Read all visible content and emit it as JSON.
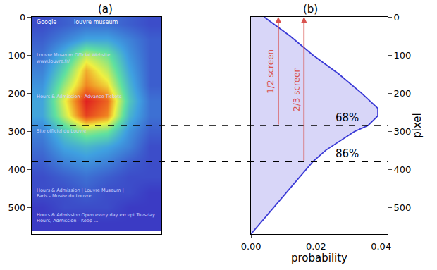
{
  "chart_data": [
    {
      "type": "heatmap",
      "title": "(a)",
      "x": [
        25,
        75,
        125,
        175,
        225,
        275
      ],
      "y": [
        20,
        60,
        100,
        140,
        180,
        220,
        260,
        300,
        340,
        380,
        420,
        460,
        500,
        540
      ],
      "z": [
        [
          0.05,
          0.1,
          0.15,
          0.15,
          0.1,
          0.05
        ],
        [
          0.1,
          0.2,
          0.3,
          0.3,
          0.2,
          0.1
        ],
        [
          0.15,
          0.35,
          0.6,
          0.5,
          0.25,
          0.1
        ],
        [
          0.2,
          0.45,
          0.75,
          0.6,
          0.3,
          0.1
        ],
        [
          0.25,
          0.55,
          0.8,
          0.7,
          0.35,
          0.1
        ],
        [
          0.3,
          0.65,
          0.95,
          0.85,
          0.4,
          0.15
        ],
        [
          0.3,
          0.6,
          0.9,
          0.8,
          0.35,
          0.15
        ],
        [
          0.2,
          0.4,
          0.55,
          0.5,
          0.25,
          0.1
        ],
        [
          0.15,
          0.3,
          0.35,
          0.3,
          0.2,
          0.05
        ],
        [
          0.1,
          0.2,
          0.25,
          0.2,
          0.1,
          0.05
        ],
        [
          0.05,
          0.1,
          0.15,
          0.1,
          0.05,
          0.05
        ],
        [
          0.05,
          0.05,
          0.1,
          0.05,
          0.05,
          0
        ],
        [
          0,
          0.05,
          0.05,
          0.05,
          0,
          0
        ],
        [
          0,
          0,
          0,
          0,
          0,
          0
        ]
      ],
      "xlim": [
        0,
        300
      ],
      "ylim": [
        0,
        570
      ],
      "yticks": [
        0,
        100,
        200,
        300,
        400,
        500
      ],
      "tick_labels": "y",
      "screen_texts": [
        "Google",
        "louvre museum",
        "Louvre Museum Official Website",
        "www.louvre.fr/",
        "Hours & Admission · Advance Tickets",
        "Site officiel du Louvre",
        "Hours & Admission | Louvre Museum |",
        "Paris - Musée du Louvre",
        "Hours & Admission Open every day except Tuesday",
        "Hours, Admission - Keep ..."
      ]
    },
    {
      "type": "line",
      "title": "(b)",
      "xlabel": "probability",
      "ylabel": "pixel",
      "color": "#3a3ad6",
      "x": [
        0.004,
        0.008,
        0.012,
        0.019,
        0.027,
        0.034,
        0.039,
        0.039,
        0.036,
        0.032,
        0.023,
        0.019,
        0.017,
        0.012,
        0.007,
        0.002,
        0.0
      ],
      "y": [
        0,
        25,
        50,
        100,
        150,
        200,
        240,
        260,
        285,
        300,
        350,
        380,
        400,
        450,
        500,
        550,
        570
      ],
      "xlim": [
        0,
        0.042
      ],
      "xticks": [
        {
          "value": 0,
          "label": "0.00"
        },
        0.02,
        0.04
      ],
      "ylim": [
        0,
        570
      ],
      "yticks": [
        0,
        100,
        200,
        300,
        400,
        500
      ],
      "screen_lines": [
        {
          "label": "1/2 screen",
          "x": 0.0084,
          "y": [
            0,
            285
          ]
        },
        {
          "label": "2/3 screen",
          "x": 0.0163,
          "y": [
            0,
            380
          ]
        }
      ],
      "hlines": [
        {
          "y": 285,
          "label": "68%"
        },
        {
          "y": 380,
          "label": "86%"
        }
      ]
    }
  ]
}
